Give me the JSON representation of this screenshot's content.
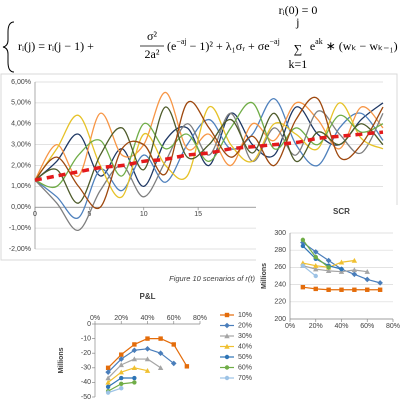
{
  "equation": {
    "line1": "rᵢ(0) = 0",
    "lhs": "rᵢ(j) = rᵢ(j − 1) +",
    "frac_num": "σ²",
    "frac_den": "2a²",
    "t1": "(e",
    "t1_sup": "−aj",
    "t2": " − 1)² + λ₁σᵣ + σe",
    "t2_sup": "−aj",
    "sum": "∑",
    "sum_top": "j",
    "sum_bottom": "k=1",
    "t3": "e",
    "t3_sup": "ak",
    "t4": " ∗ (wₖ − wₖ₋₁)"
  },
  "caption": "Figure 10 scenarios of r(t)",
  "chart_data": [
    {
      "type": "line",
      "smooth": true,
      "grid": true,
      "x": [
        0,
        2,
        4,
        6,
        8,
        10,
        12,
        14,
        16,
        18,
        20,
        22,
        24,
        26,
        28,
        30,
        32
      ],
      "xlim": [
        0,
        32
      ],
      "xticks": [
        0,
        5,
        10,
        15
      ],
      "ylim": [
        -2,
        6
      ],
      "yticks": [
        {
          "value": 6,
          "label": "6,00%"
        },
        {
          "value": 5,
          "label": "5,00%"
        },
        {
          "value": 4,
          "label": "4,00%"
        },
        {
          "value": 3,
          "label": "3,00%"
        },
        {
          "value": 2,
          "label": "2,00%"
        },
        {
          "value": 1,
          "label": "1,00%"
        },
        {
          "value": 0,
          "label": "0,00%"
        },
        {
          "value": -1,
          "label": "-1,00%"
        },
        {
          "value": -2,
          "label": "-2,00%"
        }
      ],
      "series": [
        {
          "color": "#1f3864",
          "values": [
            1.3,
            2.2,
            3.5,
            1.5,
            2.8,
            1.0,
            3.2,
            3.8,
            2.0,
            4.5,
            3.0,
            2.5,
            4.8,
            3.5,
            3.0,
            4.2,
            5.0
          ]
        },
        {
          "color": "#4f81bd",
          "values": [
            1.3,
            0.5,
            -0.5,
            1.8,
            0.8,
            2.5,
            1.2,
            3.0,
            4.2,
            2.8,
            3.5,
            5.2,
            3.0,
            2.0,
            3.8,
            4.5,
            3.2
          ]
        },
        {
          "color": "#f79646",
          "values": [
            1.3,
            3.0,
            1.5,
            4.5,
            2.5,
            3.0,
            5.5,
            2.8,
            3.5,
            2.0,
            4.0,
            3.2,
            5.0,
            4.2,
            2.8,
            4.8,
            3.8
          ]
        },
        {
          "color": "#7f7f7f",
          "values": [
            1.3,
            0.2,
            -1.1,
            0.8,
            2.0,
            0.5,
            2.2,
            4.0,
            2.5,
            4.5,
            2.2,
            3.8,
            2.5,
            4.6,
            3.5,
            2.6,
            4.5
          ]
        },
        {
          "color": "#e6c228",
          "values": [
            1.3,
            2.8,
            4.4,
            2.0,
            0.5,
            3.5,
            2.0,
            1.5,
            4.8,
            3.0,
            2.2,
            4.0,
            3.5,
            2.8,
            5.0,
            3.3,
            2.8
          ]
        },
        {
          "color": "#70ad47",
          "values": [
            1.3,
            1.0,
            2.5,
            3.2,
            1.5,
            4.0,
            2.8,
            3.5,
            2.2,
            3.8,
            5.0,
            2.8,
            3.8,
            3.0,
            4.4,
            3.6,
            4.0
          ]
        },
        {
          "color": "#4e5b2a",
          "values": [
            1.3,
            1.8,
            0.2,
            2.5,
            3.8,
            1.8,
            4.8,
            2.4,
            3.0,
            4.2,
            2.6,
            4.5,
            2.2,
            3.6,
            3.0,
            4.0,
            3.0
          ]
        },
        {
          "color": "#9e480e",
          "values": [
            1.3,
            2.4,
            1.0,
            0.0,
            2.8,
            3.0,
            1.6,
            5.0,
            3.8,
            2.4,
            3.4,
            2.0,
            4.2,
            5.2,
            2.4,
            3.0,
            4.8
          ]
        },
        {
          "color": "#e31a1c",
          "line_style": "dashed",
          "width": 3.5,
          "values": [
            1.3,
            1.5,
            1.7,
            1.9,
            2.0,
            2.2,
            2.3,
            2.5,
            2.6,
            2.8,
            2.9,
            3.0,
            3.1,
            3.3,
            3.4,
            3.5,
            3.6
          ]
        }
      ]
    },
    {
      "type": "line",
      "title": "SCR",
      "ylabel": "Millions",
      "grid": true,
      "x": [
        10,
        20,
        30,
        40,
        50,
        60,
        70
      ],
      "xlim": [
        0,
        80
      ],
      "xticks": [
        {
          "value": 0,
          "label": "0%"
        },
        {
          "value": 20,
          "label": "20%"
        },
        {
          "value": 40,
          "label": "40%"
        },
        {
          "value": 60,
          "label": "60%"
        },
        {
          "value": 80,
          "label": "80%"
        }
      ],
      "ylim": [
        200,
        300
      ],
      "yticks": [
        200,
        220,
        240,
        260,
        280,
        300
      ],
      "series": [
        {
          "color": "#e46c0a",
          "marker": "square",
          "values": [
            237,
            235,
            234,
            234,
            234,
            234,
            234
          ]
        },
        {
          "color": "#4a7ebb",
          "marker": "diamond",
          "values": [
            289,
            278,
            268,
            258,
            252,
            246,
            242
          ]
        },
        {
          "color": "#a5a5a5",
          "marker": "triangle",
          "values": [
            262,
            258,
            256,
            255,
            257,
            255,
            null
          ]
        },
        {
          "color": "#f0c030",
          "marker": "triangle",
          "values": [
            265,
            262,
            260,
            266,
            268,
            null,
            null
          ]
        },
        {
          "color": "#2e75b6",
          "marker": "circle",
          "values": [
            285,
            270,
            262,
            258,
            null,
            null,
            null
          ]
        },
        {
          "color": "#70ad47",
          "marker": "circle",
          "values": [
            292,
            272,
            260,
            null,
            null,
            null,
            null
          ]
        },
        {
          "color": "#9dc3e6",
          "marker": "circle",
          "values": [
            262,
            250,
            null,
            null,
            null,
            null,
            null
          ]
        }
      ]
    },
    {
      "type": "line",
      "title": "P&L",
      "ylabel": "Millions",
      "grid": false,
      "legend": "right",
      "x": [
        10,
        20,
        30,
        40,
        50,
        60,
        70
      ],
      "xlim": [
        0,
        80
      ],
      "xticks": [
        {
          "value": 0,
          "label": "0%"
        },
        {
          "value": 20,
          "label": "20%"
        },
        {
          "value": 40,
          "label": "40%"
        },
        {
          "value": 60,
          "label": "60%"
        },
        {
          "value": 80,
          "label": "80%"
        }
      ],
      "ylim": [
        -50,
        0
      ],
      "yticks": [
        0,
        -10,
        -20,
        -30,
        -40,
        -50
      ],
      "series": [
        {
          "name": "10%",
          "color": "#e46c0a",
          "marker": "square",
          "values": [
            -30,
            -21,
            -14,
            -10,
            -10,
            -14,
            -29
          ]
        },
        {
          "name": "20%",
          "color": "#4a7ebb",
          "marker": "diamond",
          "values": [
            -33,
            -24,
            -18,
            -17,
            -20,
            -27,
            null
          ]
        },
        {
          "name": "30%",
          "color": "#a5a5a5",
          "marker": "triangle",
          "values": [
            -37,
            -28,
            -24,
            -24,
            -30,
            null,
            null
          ]
        },
        {
          "name": "40%",
          "color": "#f0c030",
          "marker": "triangle",
          "values": [
            -40,
            -33,
            -30,
            -32,
            null,
            null,
            null
          ]
        },
        {
          "name": "50%",
          "color": "#2e75b6",
          "marker": "circle",
          "values": [
            -43,
            -37,
            -37,
            null,
            null,
            null,
            null
          ]
        },
        {
          "name": "60%",
          "color": "#70ad47",
          "marker": "circle",
          "values": [
            -46,
            -41,
            -40,
            null,
            null,
            null,
            null
          ]
        },
        {
          "name": "70%",
          "color": "#9dc3e6",
          "marker": "circle",
          "values": [
            -47,
            -44,
            null,
            null,
            null,
            null,
            null
          ]
        }
      ]
    }
  ]
}
